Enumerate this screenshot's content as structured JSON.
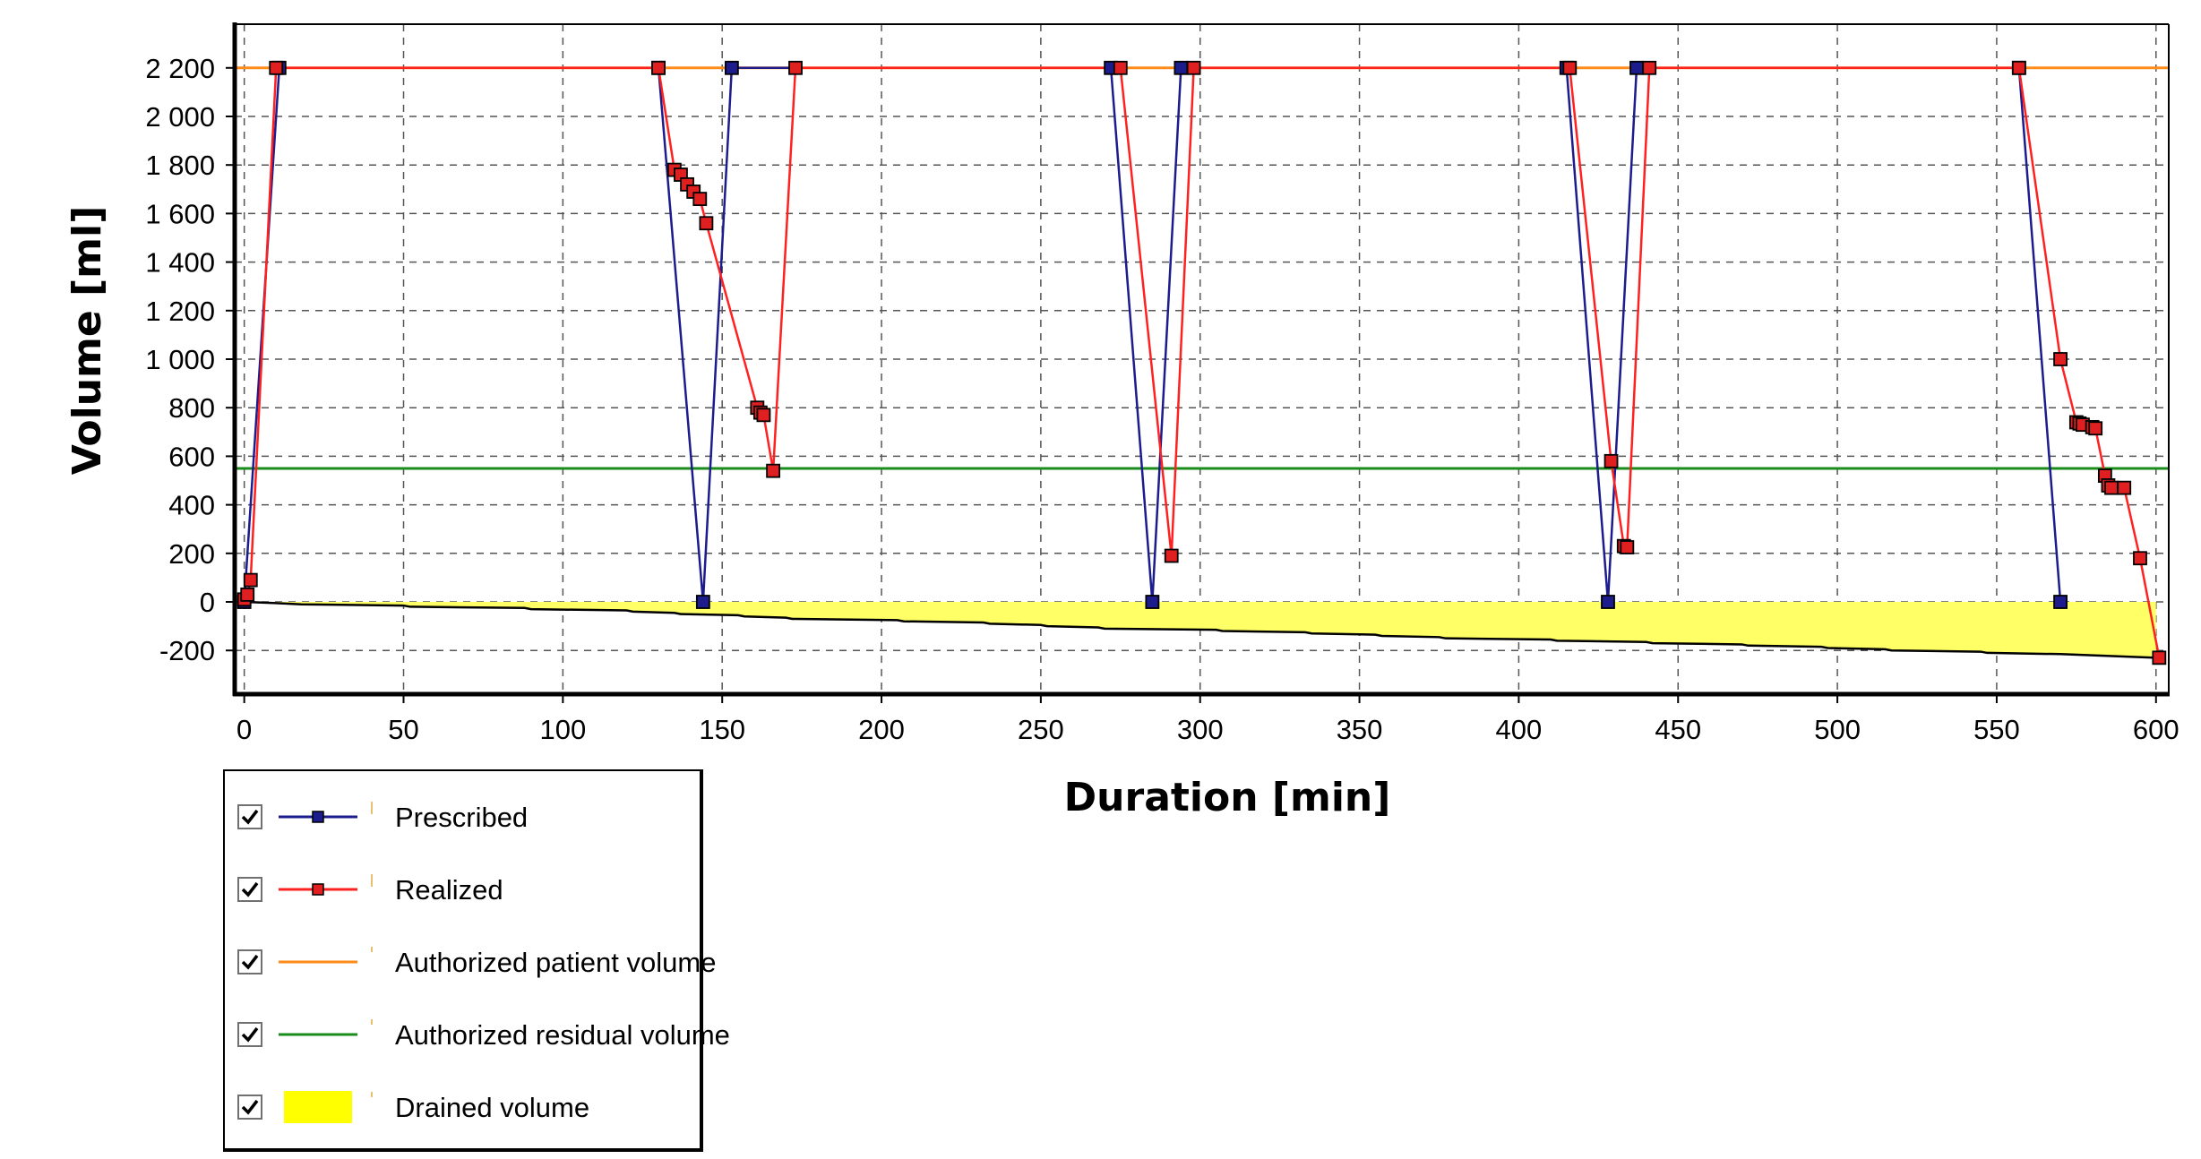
{
  "chart_data": {
    "type": "line",
    "xlabel": "Duration [min]",
    "ylabel": "Volume [ml]",
    "xlim": [
      -3,
      604
    ],
    "ylim": [
      -380,
      2380
    ],
    "xticks": [
      0,
      50,
      100,
      150,
      200,
      250,
      300,
      350,
      400,
      450,
      500,
      550,
      600
    ],
    "yticks": [
      -200,
      0,
      200,
      400,
      600,
      800,
      1000,
      1200,
      1400,
      1600,
      1800,
      2000,
      2200
    ],
    "xtick_labels": [
      "0",
      "50",
      "100",
      "150",
      "200",
      "250",
      "300",
      "350",
      "400",
      "450",
      "500",
      "550",
      "600"
    ],
    "ytick_labels": [
      "-200",
      "0",
      "200",
      "400",
      "600",
      "800",
      "1 000",
      "1 200",
      "1 400",
      "1 600",
      "1 800",
      "2 000",
      "2 200"
    ],
    "grid": true,
    "legend_position": "below-left",
    "series": [
      {
        "name": "Prescribed",
        "kind": "line-markers",
        "color": "#1c1c8c",
        "marker_color": "#1c1c8c",
        "points": [
          [
            0,
            0
          ],
          [
            11,
            2200
          ],
          [
            130,
            2200
          ],
          [
            144,
            0
          ],
          [
            153,
            2200
          ],
          [
            272,
            2200
          ],
          [
            285,
            0
          ],
          [
            294,
            2200
          ],
          [
            415,
            2200
          ],
          [
            428,
            0
          ],
          [
            437,
            2200
          ],
          [
            557,
            2200
          ],
          [
            570,
            0
          ]
        ]
      },
      {
        "name": "Realized",
        "kind": "line-markers",
        "color": "#ff2020",
        "marker_color": "#e02020",
        "points": [
          [
            0,
            10
          ],
          [
            1,
            30
          ],
          [
            2,
            90
          ],
          [
            10,
            2200
          ],
          [
            130,
            2200
          ],
          [
            135,
            1780
          ],
          [
            137,
            1760
          ],
          [
            139,
            1720
          ],
          [
            141,
            1690
          ],
          [
            143,
            1660
          ],
          [
            145,
            1560
          ],
          [
            161,
            800
          ],
          [
            162,
            780
          ],
          [
            163,
            770
          ],
          [
            166,
            540
          ],
          [
            173,
            2200
          ],
          [
            275,
            2200
          ],
          [
            291,
            190
          ],
          [
            298,
            2200
          ],
          [
            416,
            2200
          ],
          [
            429,
            580
          ],
          [
            433,
            230
          ],
          [
            434,
            225
          ],
          [
            441,
            2200
          ],
          [
            557,
            2200
          ],
          [
            570,
            1000
          ],
          [
            575,
            740
          ],
          [
            576,
            735
          ],
          [
            577,
            730
          ],
          [
            580,
            720
          ],
          [
            581,
            715
          ],
          [
            584,
            520
          ],
          [
            585,
            480
          ],
          [
            586,
            470
          ],
          [
            590,
            470
          ],
          [
            595,
            180
          ],
          [
            601,
            -230
          ]
        ]
      },
      {
        "name": "Authorized patient volume",
        "kind": "hline",
        "color": "#ff8c1a",
        "value": 2200
      },
      {
        "name": "Authorized residual volume",
        "kind": "hline",
        "color": "#1a8c1a",
        "value": 550
      },
      {
        "name": "Drained volume",
        "kind": "area",
        "color": "#ffff66",
        "edge_color": "#000000",
        "points": [
          [
            0,
            0
          ],
          [
            10,
            -5
          ],
          [
            18,
            -10
          ],
          [
            50,
            -15
          ],
          [
            52,
            -20
          ],
          [
            88,
            -25
          ],
          [
            90,
            -30
          ],
          [
            120,
            -35
          ],
          [
            122,
            -40
          ],
          [
            135,
            -45
          ],
          [
            137,
            -50
          ],
          [
            155,
            -55
          ],
          [
            157,
            -60
          ],
          [
            170,
            -65
          ],
          [
            172,
            -70
          ],
          [
            205,
            -75
          ],
          [
            207,
            -80
          ],
          [
            232,
            -85
          ],
          [
            234,
            -90
          ],
          [
            250,
            -95
          ],
          [
            252,
            -100
          ],
          [
            268,
            -105
          ],
          [
            270,
            -110
          ],
          [
            305,
            -115
          ],
          [
            307,
            -120
          ],
          [
            333,
            -125
          ],
          [
            335,
            -130
          ],
          [
            355,
            -135
          ],
          [
            357,
            -140
          ],
          [
            375,
            -145
          ],
          [
            377,
            -150
          ],
          [
            410,
            -155
          ],
          [
            412,
            -160
          ],
          [
            440,
            -165
          ],
          [
            442,
            -170
          ],
          [
            470,
            -175
          ],
          [
            472,
            -180
          ],
          [
            495,
            -185
          ],
          [
            497,
            -190
          ],
          [
            515,
            -195
          ],
          [
            517,
            -200
          ],
          [
            545,
            -205
          ],
          [
            547,
            -210
          ],
          [
            570,
            -215
          ],
          [
            600,
            -230
          ]
        ]
      }
    ]
  },
  "legend": {
    "items": [
      {
        "label": "Prescribed",
        "checked": true,
        "swatch": "line-marker",
        "color": "#1c1c8c"
      },
      {
        "label": "Realized",
        "checked": true,
        "swatch": "line-marker",
        "color": "#ff2020"
      },
      {
        "label": "Authorized patient volume",
        "checked": true,
        "swatch": "line",
        "color": "#ff8c1a"
      },
      {
        "label": "Authorized residual volume",
        "checked": true,
        "swatch": "line",
        "color": "#1a8c1a"
      },
      {
        "label": "Drained volume",
        "checked": true,
        "swatch": "fill",
        "color": "#ffff00"
      }
    ]
  }
}
